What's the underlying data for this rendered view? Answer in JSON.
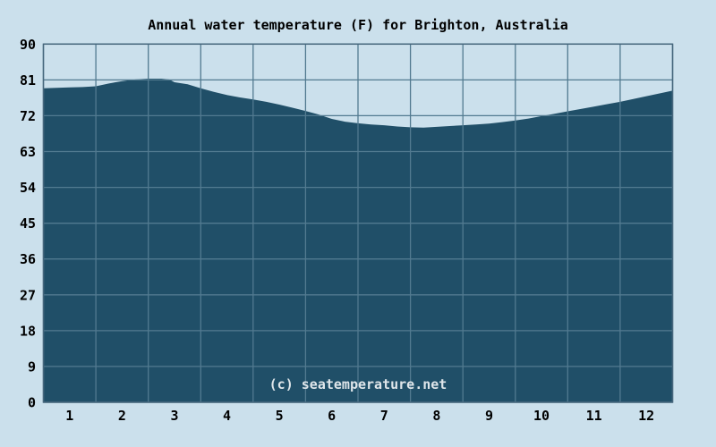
{
  "chart_data": {
    "type": "area",
    "title": "Annual water temperature (F) for Brighton, Australia",
    "watermark": "(c) seatemperature.net",
    "unit": "F",
    "xlabel": "",
    "ylabel": "",
    "categories": [
      1,
      2,
      3,
      4,
      5,
      6,
      7,
      8,
      9,
      10,
      11,
      12
    ],
    "values": [
      79,
      81,
      80.5,
      77,
      75,
      71,
      69.5,
      69,
      70,
      72,
      74.5,
      77
    ],
    "ylim": [
      0,
      90
    ],
    "yticks": [
      0,
      9,
      18,
      27,
      36,
      45,
      54,
      63,
      72,
      81,
      90
    ],
    "xticks": [
      1,
      2,
      3,
      4,
      5,
      6,
      7,
      8,
      9,
      10,
      11,
      12
    ],
    "grid": true,
    "legend": false,
    "colors": {
      "background": "#cbe0ec",
      "area_fill": "#204f68",
      "gridline": "#527a90",
      "border": "#47677d",
      "text": "#000000",
      "watermark_text": "#dfe6ea"
    },
    "curve_points": [
      [
        0.0,
        78.9
      ],
      [
        0.25,
        79.0
      ],
      [
        0.5,
        79.1
      ],
      [
        0.75,
        79.2
      ],
      [
        1.0,
        79.4
      ],
      [
        1.25,
        80.1
      ],
      [
        1.5,
        80.7
      ],
      [
        1.75,
        81.1
      ],
      [
        2.0,
        81.3
      ],
      [
        2.25,
        81.3
      ],
      [
        2.4,
        81.1
      ],
      [
        2.5,
        80.4
      ],
      [
        2.75,
        79.9
      ],
      [
        3.0,
        78.9
      ],
      [
        3.25,
        78.0
      ],
      [
        3.5,
        77.2
      ],
      [
        3.75,
        76.6
      ],
      [
        4.0,
        76.1
      ],
      [
        4.25,
        75.5
      ],
      [
        4.5,
        74.8
      ],
      [
        4.75,
        74.0
      ],
      [
        5.0,
        73.2
      ],
      [
        5.25,
        72.3
      ],
      [
        5.5,
        71.2
      ],
      [
        5.75,
        70.5
      ],
      [
        6.0,
        70.1
      ],
      [
        6.25,
        69.8
      ],
      [
        6.5,
        69.6
      ],
      [
        6.75,
        69.3
      ],
      [
        7.0,
        69.1
      ],
      [
        7.25,
        69.0
      ],
      [
        7.5,
        69.2
      ],
      [
        7.75,
        69.4
      ],
      [
        8.0,
        69.6
      ],
      [
        8.25,
        69.8
      ],
      [
        8.5,
        70.0
      ],
      [
        8.75,
        70.4
      ],
      [
        9.0,
        70.8
      ],
      [
        9.25,
        71.3
      ],
      [
        9.5,
        71.9
      ],
      [
        9.75,
        72.5
      ],
      [
        10.0,
        73.1
      ],
      [
        10.25,
        73.7
      ],
      [
        10.5,
        74.3
      ],
      [
        10.75,
        74.9
      ],
      [
        11.0,
        75.5
      ],
      [
        11.25,
        76.2
      ],
      [
        11.5,
        76.9
      ],
      [
        11.75,
        77.6
      ],
      [
        12.0,
        78.3
      ]
    ]
  }
}
